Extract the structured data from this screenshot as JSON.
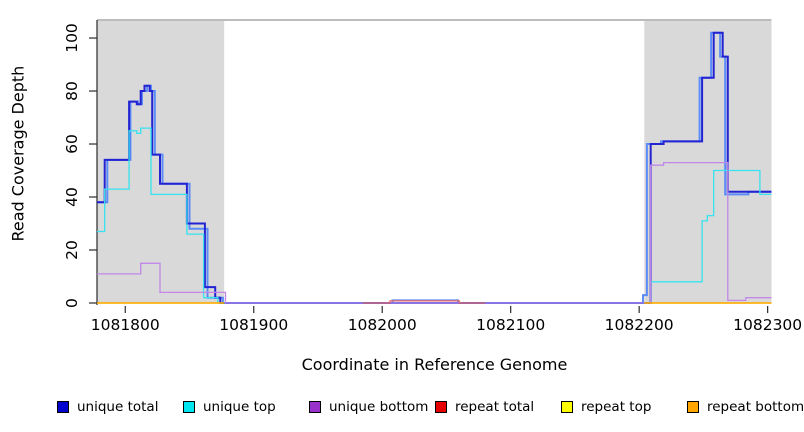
{
  "chart_data": {
    "type": "line",
    "line_style": "step-after",
    "title": "",
    "xlabel": "Coordinate in Reference Genome",
    "ylabel": "Read Coverage Depth",
    "xlim": [
      1081778,
      1082303
    ],
    "ylim": [
      0,
      106.8
    ],
    "grid": false,
    "x_ticks": [
      1081800,
      1081900,
      1082000,
      1082100,
      1082200,
      1082300
    ],
    "y_ticks": [
      0,
      20,
      40,
      60,
      80,
      100
    ],
    "shaded_regions": [
      {
        "name": "left-repeat-region",
        "x0": 1081778,
        "x1": 1081877,
        "color": "#d9d9d9"
      },
      {
        "name": "right-repeat-region",
        "x0": 1082204,
        "x1": 1082303,
        "color": "#d9d9d9"
      }
    ],
    "series": [
      {
        "name": "total",
        "color": "#5b8cf8",
        "width": 2,
        "in_legend": false,
        "segments": [
          [
            [
              1081778,
              38
            ],
            [
              1081786,
              54
            ],
            [
              1081804,
              76
            ],
            [
              1081810,
              75
            ],
            [
              1081813,
              80
            ],
            [
              1081817,
              82
            ],
            [
              1081820,
              80
            ],
            [
              1081823,
              56
            ],
            [
              1081829,
              45
            ],
            [
              1081850,
              28
            ],
            [
              1081864,
              2
            ],
            [
              1081876,
              0
            ],
            [
              1082008,
              1
            ],
            [
              1082059,
              0
            ],
            [
              1082203,
              3
            ],
            [
              1082206,
              60
            ],
            [
              1082217,
              61
            ],
            [
              1082247,
              85
            ],
            [
              1082256,
              102
            ],
            [
              1082263,
              93
            ],
            [
              1082267,
              41
            ],
            [
              1082285,
              42
            ],
            [
              1082303,
              42
            ]
          ]
        ]
      },
      {
        "name": "unique total",
        "color": "#2323d2",
        "width": 2,
        "in_legend": true,
        "segments": [
          [
            [
              1081778,
              38
            ],
            [
              1081784,
              54
            ],
            [
              1081803,
              76
            ],
            [
              1081809,
              75
            ],
            [
              1081812,
              80
            ],
            [
              1081815,
              82
            ],
            [
              1081819,
              80
            ],
            [
              1081821,
              56
            ],
            [
              1081827,
              45
            ],
            [
              1081848,
              30
            ],
            [
              1081862,
              6
            ],
            [
              1081870,
              2
            ],
            [
              1081874,
              0
            ],
            [
              1082209,
              60
            ],
            [
              1082219,
              61
            ],
            [
              1082249,
              85
            ],
            [
              1082258,
              102
            ],
            [
              1082265,
              93
            ],
            [
              1082269,
              42
            ],
            [
              1082303,
              42
            ]
          ]
        ]
      },
      {
        "name": "unique top",
        "color": "#36e3ee",
        "width": 1.3,
        "in_legend": true,
        "segments": [
          [
            [
              1081778,
              27
            ],
            [
              1081784,
              43
            ],
            [
              1081803,
              65
            ],
            [
              1081809,
              64
            ],
            [
              1081812,
              66
            ],
            [
              1081820,
              41
            ],
            [
              1081848,
              26
            ],
            [
              1081861,
              2
            ],
            [
              1081872,
              0
            ],
            [
              1082209,
              8
            ],
            [
              1082249,
              31
            ],
            [
              1082253,
              33
            ],
            [
              1082258,
              50
            ],
            [
              1082294,
              41
            ],
            [
              1082303,
              41
            ]
          ]
        ]
      },
      {
        "name": "unique bottom",
        "color": "#c287e8",
        "width": 1.3,
        "in_legend": true,
        "segments": [
          [
            [
              1081778,
              11
            ],
            [
              1081812,
              15
            ],
            [
              1081827,
              4
            ],
            [
              1081878,
              0
            ],
            [
              1082209,
              52
            ],
            [
              1082219,
              53
            ],
            [
              1082269,
              1
            ],
            [
              1082283,
              2
            ],
            [
              1082303,
              2
            ]
          ]
        ]
      },
      {
        "name": "repeat total",
        "color": "#ea6a6a",
        "width": 1.3,
        "in_legend": true,
        "segments": [
          [
            [
              1081985,
              0
            ],
            [
              1082006,
              0.8
            ],
            [
              1082060,
              0
            ],
            [
              1082080,
              0
            ]
          ]
        ]
      },
      {
        "name": "repeat top",
        "color": "#ffff00",
        "width": 1.3,
        "in_legend": true,
        "segments": [
          [
            [
              1081778,
              0
            ],
            [
              1081877,
              0
            ]
          ],
          [
            [
              1082204,
              0
            ],
            [
              1082303,
              0
            ]
          ]
        ]
      },
      {
        "name": "repeat bottom",
        "color": "#ffa500",
        "width": 1.5,
        "in_legend": true,
        "segments": [
          [
            [
              1081778,
              0
            ],
            [
              1081877,
              0
            ]
          ],
          [
            [
              1082204,
              0
            ],
            [
              1082303,
              0
            ]
          ]
        ]
      }
    ],
    "legend": [
      {
        "label": "unique total",
        "color": "#0000cd"
      },
      {
        "label": "unique top",
        "color": "#00e5ee"
      },
      {
        "label": "unique bottom",
        "color": "#9932cc"
      },
      {
        "label": "repeat total",
        "color": "#e60000"
      },
      {
        "label": "repeat top",
        "color": "#ffff00"
      },
      {
        "label": "repeat bottom",
        "color": "#ffa500"
      }
    ],
    "legend_position": "bottom"
  }
}
